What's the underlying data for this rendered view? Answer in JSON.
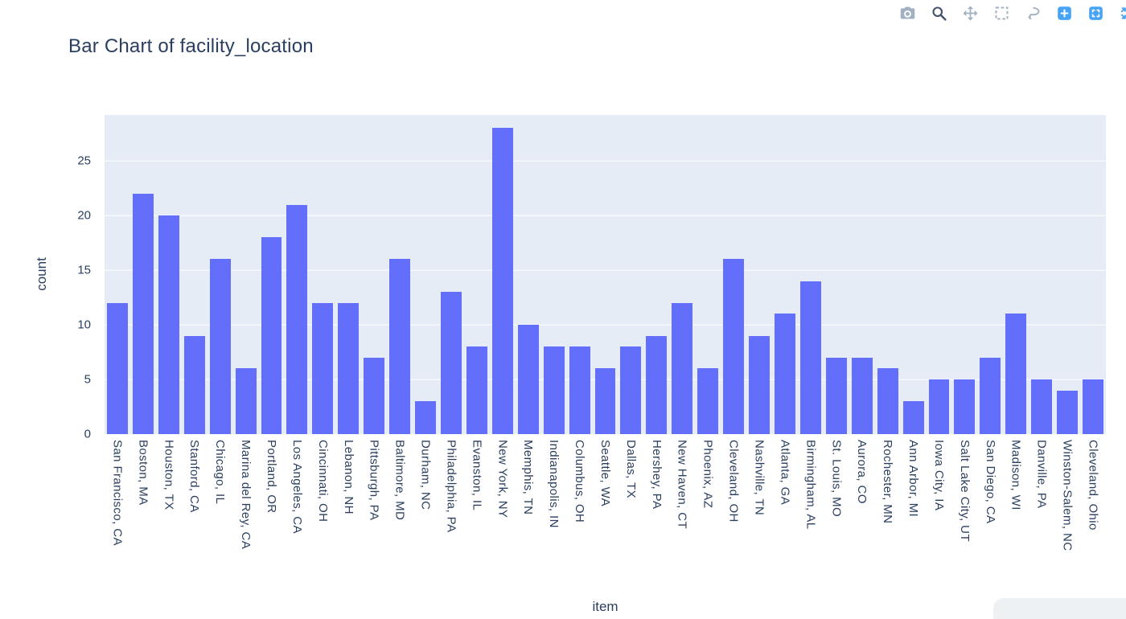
{
  "modebar": {
    "icons": [
      {
        "name": "camera-icon",
        "title": "Download plot as a png",
        "style": "gray"
      },
      {
        "name": "zoom-icon",
        "title": "Zoom",
        "style": "dark"
      },
      {
        "name": "pan-icon",
        "title": "Pan",
        "style": "gray"
      },
      {
        "name": "box-select-icon",
        "title": "Box Select",
        "style": "gray"
      },
      {
        "name": "lasso-icon",
        "title": "Lasso Select",
        "style": "gray"
      },
      {
        "name": "zoom-in-icon",
        "title": "Zoom in",
        "style": "accent"
      },
      {
        "name": "autoscale-icon",
        "title": "Autoscale",
        "style": "accent"
      },
      {
        "name": "reset-axes-icon",
        "title": "Reset axes",
        "style": "accent"
      }
    ]
  },
  "chart_data": {
    "type": "bar",
    "title": "Bar Chart of facility_location",
    "xlabel": "item",
    "ylabel": "count",
    "categories": [
      "San Francisco, CA",
      "Boston, MA",
      "Houston, TX",
      "Stanford, CA",
      "Chicago, IL",
      "Marina del Rey, CA",
      "Portland, OR",
      "Los Angeles, CA",
      "Cincinnati, OH",
      "Lebanon, NH",
      "Pittsburgh, PA",
      "Baltimore, MD",
      "Durham, NC",
      "Philadelphia, PA",
      "Evanston, IL",
      "New York, NY",
      "Memphis, TN",
      "Indianapolis, IN",
      "Columbus, OH",
      "Seattle, WA",
      "Dallas, TX",
      "Hershey, PA",
      "New Haven, CT",
      "Phoenix, AZ",
      "Cleveland, OH",
      "Nashville, TN",
      "Atlanta, GA",
      "Birmingham, AL",
      "St. Louis, MO",
      "Aurora, CO",
      "Rochester, MN",
      "Ann Arbor, MI",
      "Iowa City, IA",
      "Salt Lake City, UT",
      "San Diego, CA",
      "Madison, WI",
      "Danville, PA",
      "Winston-Salem, NC",
      "Cleveland, Ohio"
    ],
    "values": [
      12,
      22,
      20,
      9,
      16,
      6,
      18,
      21,
      12,
      12,
      7,
      16,
      3,
      13,
      8,
      28,
      10,
      8,
      8,
      6,
      8,
      9,
      12,
      6,
      16,
      9,
      11,
      14,
      7,
      7,
      6,
      3,
      5,
      5,
      7,
      11,
      5,
      4,
      5
    ],
    "yticks": [
      0,
      5,
      10,
      15,
      20,
      25
    ],
    "ylim": [
      0,
      29.2
    ],
    "bar_color": "#636EFA",
    "plot_bg": "#E5ECF6",
    "grid_color": "#FFFFFF",
    "text_color": "#2a3f5f",
    "grid": true,
    "legend": "none"
  }
}
